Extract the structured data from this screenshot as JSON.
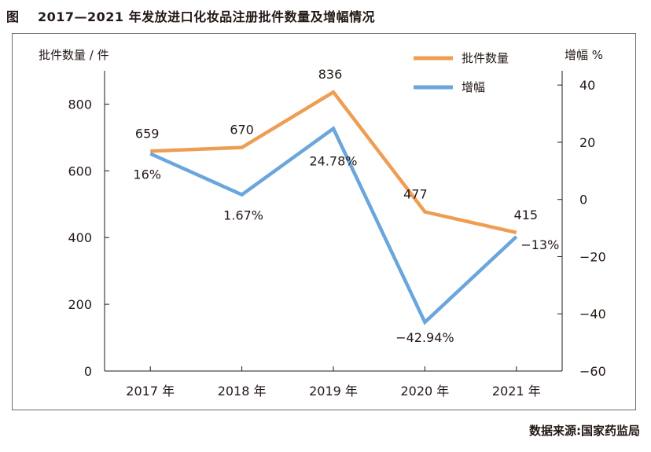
{
  "figure": {
    "prefix": "图",
    "title": "2017—2021 年发放进口化妆品注册批件数量及增幅情况",
    "source": "数据来源:国家药监局"
  },
  "colors": {
    "count": "#EE9D53",
    "growth": "#6AA6DC",
    "axis": "#231815"
  },
  "chart_data": {
    "type": "line",
    "categories": [
      "2017 年",
      "2018 年",
      "2019 年",
      "2020 年",
      "2021 年"
    ],
    "y_left": {
      "label": "批件数量 / 件",
      "lim": [
        0,
        900
      ],
      "ticks": [
        0,
        200,
        400,
        600,
        800
      ]
    },
    "y_right": {
      "label": "增幅 %",
      "lim": [
        -60,
        45
      ],
      "ticks": [
        -60,
        -40,
        -20,
        0,
        20,
        40
      ],
      "tick_labels": [
        "−60",
        "−40",
        "−20",
        "0",
        "20",
        "40"
      ]
    },
    "grid": false,
    "legend": "top-right",
    "series": [
      {
        "name": "批件数量",
        "axis": "left",
        "values": [
          659,
          670,
          836,
          477,
          415
        ],
        "labels": [
          "659",
          "670",
          "836",
          "477",
          "415"
        ]
      },
      {
        "name": "增幅",
        "axis": "right",
        "values": [
          16,
          1.67,
          24.78,
          -42.94,
          -13
        ],
        "labels": [
          "16%",
          "1.67%",
          "24.78%",
          "−42.94%",
          "−13%"
        ]
      }
    ]
  }
}
